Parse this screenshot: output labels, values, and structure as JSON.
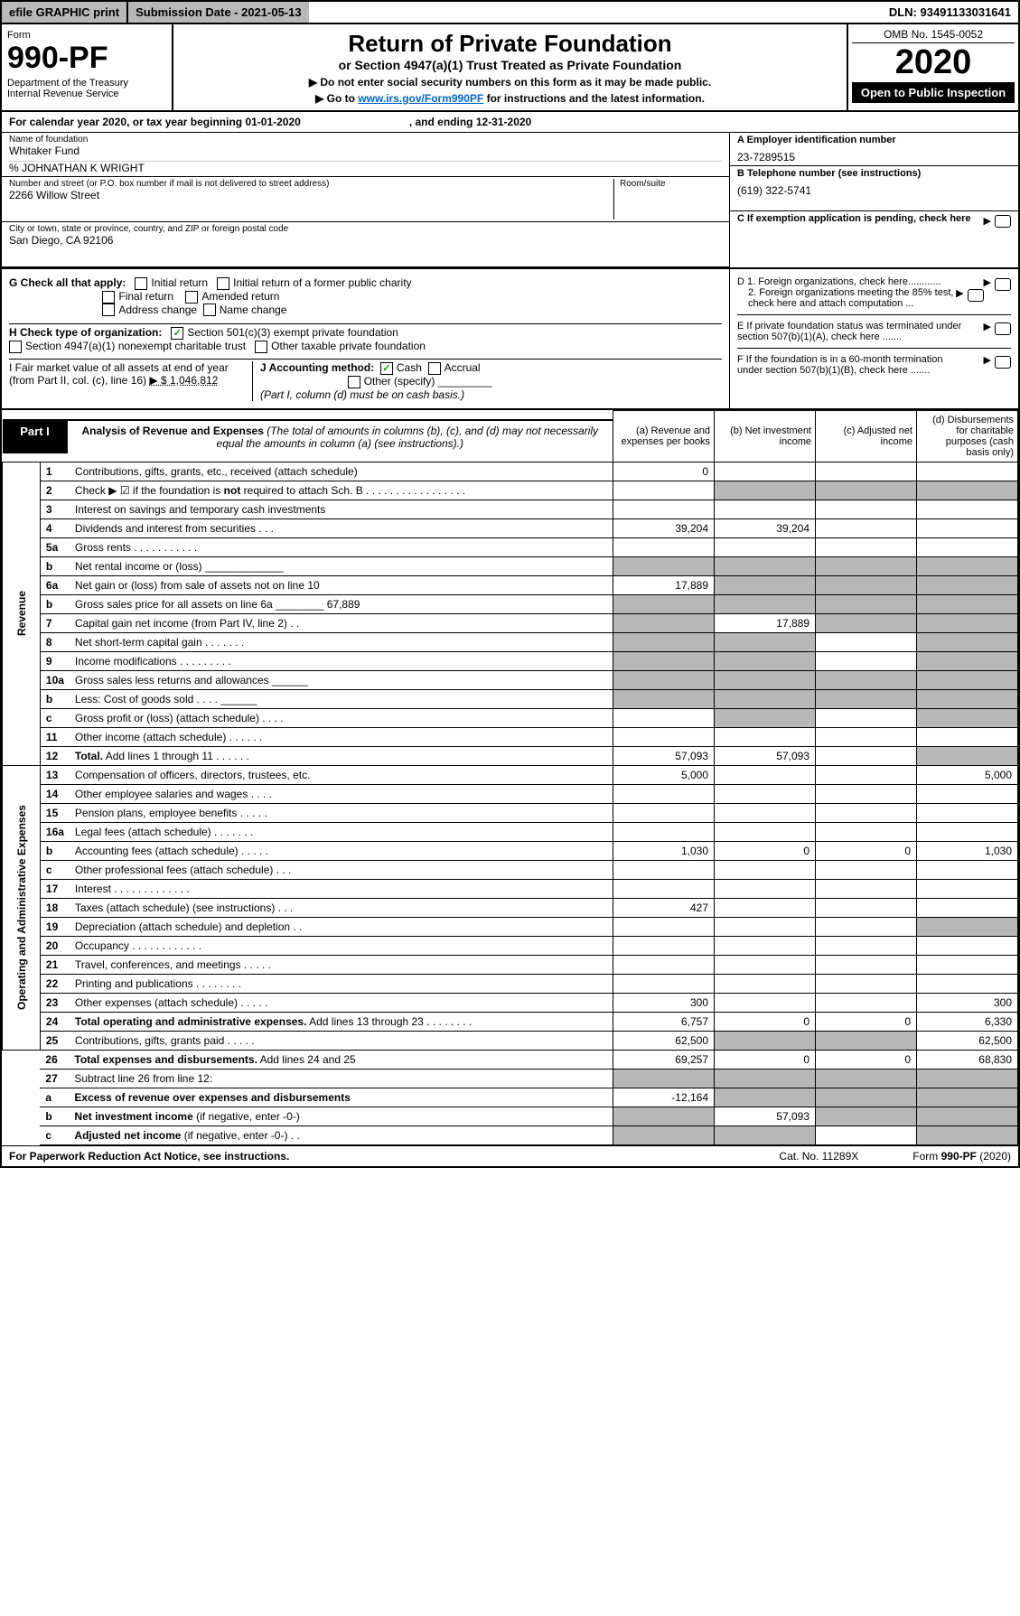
{
  "topbar": {
    "efile": "efile GRAPHIC print",
    "subdate": "Submission Date - 2021-05-13",
    "dln": "DLN: 93491133031641"
  },
  "header": {
    "form": "Form",
    "formno": "990-PF",
    "dept": "Department of the Treasury\nInternal Revenue Service",
    "title": "Return of Private Foundation",
    "sub": "or Section 4947(a)(1) Trust Treated as Private Foundation",
    "note1": "▶ Do not enter social security numbers on this form as it may be made public.",
    "note2_pre": "▶ Go to ",
    "note2_link": "www.irs.gov/Form990PF",
    "note2_post": " for instructions and the latest information.",
    "omb": "OMB No. 1545-0052",
    "year": "2020",
    "open": "Open to Public Inspection"
  },
  "calyear": {
    "beg": "For calendar year 2020, or tax year beginning 01-01-2020",
    "end": ", and ending 12-31-2020"
  },
  "info": {
    "name_label": "Name of foundation",
    "name": "Whitaker Fund",
    "care": "% JOHNATHAN K WRIGHT",
    "street_label": "Number and street (or P.O. box number if mail is not delivered to street address)",
    "street": "2266 Willow Street",
    "room_label": "Room/suite",
    "city_label": "City or town, state or province, country, and ZIP or foreign postal code",
    "city": "San Diego, CA  92106",
    "a_label": "A Employer identification number",
    "a_val": "23-7289515",
    "b_label": "B Telephone number (see instructions)",
    "b_val": "(619) 322-5741",
    "c_label": "C If exemption application is pending, check here"
  },
  "g": {
    "label": "G Check all that apply:",
    "opts": [
      "Initial return",
      "Initial return of a former public charity",
      "Final return",
      "Amended return",
      "Address change",
      "Name change"
    ]
  },
  "h": {
    "label": "H Check type of organization:",
    "opt1": "Section 501(c)(3) exempt private foundation",
    "opt2": "Section 4947(a)(1) nonexempt charitable trust",
    "opt3": "Other taxable private foundation"
  },
  "i": {
    "label": "I Fair market value of all assets at end of year (from Part II, col. (c), line 16)",
    "val": "▶ $  1,046,812"
  },
  "j": {
    "label": "J Accounting method:",
    "cash": "Cash",
    "accrual": "Accrual",
    "other": "Other (specify)",
    "note": "(Part I, column (d) must be on cash basis.)"
  },
  "d": {
    "d1": "D 1. Foreign organizations, check here............",
    "d2": "2. Foreign organizations meeting the 85% test, check here and attach computation ..."
  },
  "e": "E  If private foundation status was terminated under section 507(b)(1)(A), check here .......",
  "f": "F  If the foundation is in a 60-month termination under section 507(b)(1)(B), check here .......",
  "part1": {
    "label": "Part I",
    "title": "Analysis of Revenue and Expenses",
    "note": "(The total of amounts in columns (b), (c), and (d) may not necessarily equal the amounts in column (a) (see instructions).)",
    "cols": {
      "a": "(a) Revenue and expenses per books",
      "b": "(b) Net investment income",
      "c": "(c) Adjusted net income",
      "d": "(d) Disbursements for charitable purposes (cash basis only)"
    }
  },
  "sections": {
    "revenue": "Revenue",
    "opex": "Operating and Administrative Expenses"
  },
  "rows": [
    {
      "n": "1",
      "d": "Contributions, gifts, grants, etc., received (attach schedule)",
      "a": "0",
      "b": "",
      "c": "",
      "dd": "",
      "s": "rev"
    },
    {
      "n": "2",
      "d": "Check ▶ ☑ if the foundation is <b>not</b> required to attach Sch. B  .  .  .  .  .  .  .  .  .  .  .  .  .  .  .  .  .",
      "a": "",
      "b": "",
      "c": "",
      "dd": "",
      "s": "rev",
      "shade_bcd": true
    },
    {
      "n": "3",
      "d": "Interest on savings and temporary cash investments",
      "a": "",
      "b": "",
      "c": "",
      "dd": "",
      "s": "rev"
    },
    {
      "n": "4",
      "d": "Dividends and interest from securities   .   .   .",
      "a": "39,204",
      "b": "39,204",
      "c": "",
      "dd": "",
      "s": "rev"
    },
    {
      "n": "5a",
      "d": "Gross rents   .   .   .   .   .   .   .   .   .   .   .",
      "a": "",
      "b": "",
      "c": "",
      "dd": "",
      "s": "rev"
    },
    {
      "n": "b",
      "d": "Net rental income or (loss)  _____________",
      "a": "",
      "b": "",
      "c": "",
      "dd": "",
      "s": "rev",
      "shade_all": true
    },
    {
      "n": "6a",
      "d": "Net gain or (loss) from sale of assets not on line 10",
      "a": "17,889",
      "b": "",
      "c": "",
      "dd": "",
      "s": "rev",
      "shade_bcd": true
    },
    {
      "n": "b",
      "d": "Gross sales price for all assets on line 6a ________ 67,889",
      "a": "",
      "b": "",
      "c": "",
      "dd": "",
      "s": "rev",
      "shade_all": true
    },
    {
      "n": "7",
      "d": "Capital gain net income (from Part IV, line 2)   .   .",
      "a": "",
      "b": "17,889",
      "c": "",
      "dd": "",
      "s": "rev",
      "shade_a": true,
      "shade_cd": true
    },
    {
      "n": "8",
      "d": "Net short-term capital gain   .   .   .   .   .   .   .",
      "a": "",
      "b": "",
      "c": "",
      "dd": "",
      "s": "rev",
      "shade_ab": true,
      "shade_d": true
    },
    {
      "n": "9",
      "d": "Income modifications  .   .   .   .   .   .   .   .   .",
      "a": "",
      "b": "",
      "c": "",
      "dd": "",
      "s": "rev",
      "shade_ab": true,
      "shade_d": true
    },
    {
      "n": "10a",
      "d": "Gross sales less returns and allowances  ______",
      "a": "",
      "b": "",
      "c": "",
      "dd": "",
      "s": "rev",
      "shade_all": true
    },
    {
      "n": "b",
      "d": "Less: Cost of goods sold    .   .   .   .  ______",
      "a": "",
      "b": "",
      "c": "",
      "dd": "",
      "s": "rev",
      "shade_all": true
    },
    {
      "n": "c",
      "d": "Gross profit or (loss) (attach schedule)   .   .   .   .",
      "a": "",
      "b": "",
      "c": "",
      "dd": "",
      "s": "rev",
      "shade_b": true,
      "shade_d": true
    },
    {
      "n": "11",
      "d": "Other income (attach schedule)   .   .   .   .   .   .",
      "a": "",
      "b": "",
      "c": "",
      "dd": "",
      "s": "rev"
    },
    {
      "n": "12",
      "d": "<b>Total.</b> Add lines 1 through 11   .   .   .   .   .   .",
      "a": "57,093",
      "b": "57,093",
      "c": "",
      "dd": "",
      "s": "rev",
      "shade_d": true
    },
    {
      "n": "13",
      "d": "Compensation of officers, directors, trustees, etc.",
      "a": "5,000",
      "b": "",
      "c": "",
      "dd": "5,000",
      "s": "op"
    },
    {
      "n": "14",
      "d": "Other employee salaries and wages   .   .   .   .",
      "a": "",
      "b": "",
      "c": "",
      "dd": "",
      "s": "op"
    },
    {
      "n": "15",
      "d": "Pension plans, employee benefits   .   .   .   .   .",
      "a": "",
      "b": "",
      "c": "",
      "dd": "",
      "s": "op"
    },
    {
      "n": "16a",
      "d": "Legal fees (attach schedule)  .   .   .   .   .   .   .",
      "a": "",
      "b": "",
      "c": "",
      "dd": "",
      "s": "op"
    },
    {
      "n": "b",
      "d": "Accounting fees (attach schedule)   .   .   .   .   .",
      "a": "1,030",
      "b": "0",
      "c": "0",
      "dd": "1,030",
      "s": "op"
    },
    {
      "n": "c",
      "d": "Other professional fees (attach schedule)   .   .   .",
      "a": "",
      "b": "",
      "c": "",
      "dd": "",
      "s": "op"
    },
    {
      "n": "17",
      "d": "Interest  .   .   .   .   .   .   .   .   .   .   .   .   .",
      "a": "",
      "b": "",
      "c": "",
      "dd": "",
      "s": "op"
    },
    {
      "n": "18",
      "d": "Taxes (attach schedule) (see instructions)   .   .   .",
      "a": "427",
      "b": "",
      "c": "",
      "dd": "",
      "s": "op"
    },
    {
      "n": "19",
      "d": "Depreciation (attach schedule) and depletion   .   .",
      "a": "",
      "b": "",
      "c": "",
      "dd": "",
      "s": "op",
      "shade_d": true
    },
    {
      "n": "20",
      "d": "Occupancy  .   .   .   .   .   .   .   .   .   .   .   .",
      "a": "",
      "b": "",
      "c": "",
      "dd": "",
      "s": "op"
    },
    {
      "n": "21",
      "d": "Travel, conferences, and meetings  .   .   .   .   .",
      "a": "",
      "b": "",
      "c": "",
      "dd": "",
      "s": "op"
    },
    {
      "n": "22",
      "d": "Printing and publications  .   .   .   .   .   .   .   .",
      "a": "",
      "b": "",
      "c": "",
      "dd": "",
      "s": "op"
    },
    {
      "n": "23",
      "d": "Other expenses (attach schedule)  .   .   .   .   .",
      "a": "300",
      "b": "",
      "c": "",
      "dd": "300",
      "s": "op"
    },
    {
      "n": "24",
      "d": "<b>Total operating and administrative expenses.</b> Add lines 13 through 23   .   .   .   .   .   .   .   .",
      "a": "6,757",
      "b": "0",
      "c": "0",
      "dd": "6,330",
      "s": "op"
    },
    {
      "n": "25",
      "d": "Contributions, gifts, grants paid    .   .   .   .   .",
      "a": "62,500",
      "b": "",
      "c": "",
      "dd": "62,500",
      "s": "op",
      "shade_bc": true
    },
    {
      "n": "26",
      "d": "<b>Total expenses and disbursements.</b> Add lines 24 and 25",
      "a": "69,257",
      "b": "0",
      "c": "0",
      "dd": "68,830",
      "s": "none"
    },
    {
      "n": "27",
      "d": "Subtract line 26 from line 12:",
      "a": "",
      "b": "",
      "c": "",
      "dd": "",
      "s": "none",
      "shade_all": true
    },
    {
      "n": "a",
      "d": "<b>Excess of revenue over expenses and disbursements</b>",
      "a": "-12,164",
      "b": "",
      "c": "",
      "dd": "",
      "s": "none",
      "shade_bcd": true
    },
    {
      "n": "b",
      "d": "<b>Net investment income</b> (if negative, enter -0-)",
      "a": "",
      "b": "57,093",
      "c": "",
      "dd": "",
      "s": "none",
      "shade_a": true,
      "shade_cd": true
    },
    {
      "n": "c",
      "d": "<b>Adjusted net income</b> (if negative, enter -0-)   .   .",
      "a": "",
      "b": "",
      "c": "",
      "dd": "",
      "s": "none",
      "shade_ab": true,
      "shade_d": true
    }
  ],
  "footer": {
    "left": "For Paperwork Reduction Act Notice, see instructions.",
    "cat": "Cat. No. 11289X",
    "right": "Form 990-PF (2020)"
  }
}
